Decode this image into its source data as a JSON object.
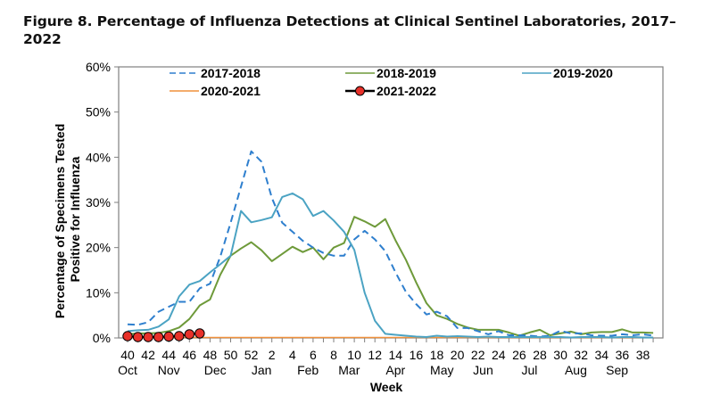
{
  "figure": {
    "title": "Figure 8. Percentage of Influenza Detections at Clinical Sentinel Laboratories, 2017–2022"
  },
  "chart_data": {
    "type": "line",
    "title": "Figure 8. Percentage of Influenza Detections at Clinical Sentinel Laboratories, 2017–2022",
    "xlabel": "Week",
    "ylabel": "Percentage of Specimens Tested Positive for Influenza",
    "ylim": [
      0,
      60
    ],
    "yticks": [
      "0%",
      "10%",
      "20%",
      "30%",
      "40%",
      "50%",
      "60%"
    ],
    "ytick_values": [
      0,
      10,
      20,
      30,
      40,
      50,
      60
    ],
    "grid": false,
    "legend_position": "top",
    "x_weeks": [
      40,
      41,
      42,
      43,
      44,
      45,
      46,
      47,
      48,
      49,
      50,
      51,
      52,
      1,
      2,
      3,
      4,
      5,
      6,
      7,
      8,
      9,
      10,
      11,
      12,
      13,
      14,
      15,
      16,
      17,
      18,
      19,
      20,
      21,
      22,
      23,
      24,
      25,
      26,
      27,
      28,
      29,
      30,
      31,
      32,
      33,
      34,
      35,
      36,
      37,
      38,
      39
    ],
    "xtick_labels": [
      "40",
      "42",
      "44",
      "46",
      "48",
      "50",
      "52",
      "2",
      "4",
      "6",
      "8",
      "10",
      "12",
      "14",
      "16",
      "18",
      "20",
      "22",
      "24",
      "26",
      "28",
      "30",
      "32",
      "34",
      "36",
      "38"
    ],
    "month_labels": [
      {
        "label": "Oct",
        "week_index": 0
      },
      {
        "label": "Nov",
        "week_index": 4
      },
      {
        "label": "Dec",
        "week_index": 8.5
      },
      {
        "label": "Jan",
        "week_index": 13
      },
      {
        "label": "Feb",
        "week_index": 17.5
      },
      {
        "label": "Mar",
        "week_index": 21.5
      },
      {
        "label": "Apr",
        "week_index": 26
      },
      {
        "label": "May",
        "week_index": 30.5
      },
      {
        "label": "Jun",
        "week_index": 34.5
      },
      {
        "label": "Jul",
        "week_index": 39
      },
      {
        "label": "Aug",
        "week_index": 43.5
      },
      {
        "label": "Sep",
        "week_index": 47.5
      }
    ],
    "series": [
      {
        "name": "2017-2018",
        "color": "#2e7fce",
        "style": "dashed",
        "values": [
          3.0,
          2.9,
          3.5,
          5.8,
          6.9,
          8.0,
          8.0,
          11.0,
          12.0,
          18.0,
          25.5,
          33.5,
          41.3,
          39.0,
          31.0,
          25.5,
          23.5,
          21.5,
          20.0,
          18.8,
          18.2,
          18.2,
          21.8,
          23.7,
          21.8,
          19.2,
          14.5,
          10.2,
          7.5,
          5.2,
          5.8,
          4.8,
          2.2,
          2.2,
          1.5,
          0.8,
          1.5,
          0.6,
          0.6,
          0.5,
          0.3,
          0.5,
          1.6,
          1.0,
          1.0,
          0.6,
          0.5,
          0.5,
          0.8,
          0.6,
          0.8,
          0.5
        ]
      },
      {
        "name": "2018-2019",
        "color": "#6e9a3a",
        "style": "solid",
        "values": [
          0.8,
          1.0,
          1.0,
          1.1,
          1.5,
          2.3,
          4.2,
          7.2,
          8.5,
          14.0,
          18.2,
          19.8,
          21.2,
          19.4,
          17.0,
          18.6,
          20.2,
          19.0,
          20.0,
          17.4,
          20.0,
          21.0,
          26.8,
          25.8,
          24.6,
          26.3,
          21.6,
          17.3,
          12.3,
          7.7,
          5.0,
          4.2,
          3.1,
          2.3,
          1.8,
          1.8,
          1.8,
          1.2,
          0.5,
          1.2,
          1.8,
          0.6,
          1.0,
          1.4,
          0.8,
          1.2,
          1.3,
          1.3,
          1.9,
          1.2,
          1.2,
          1.1
        ]
      },
      {
        "name": "2019-2020",
        "color": "#4ba3c3",
        "style": "solid",
        "values": [
          1.5,
          1.7,
          1.8,
          2.5,
          4.1,
          9.2,
          11.8,
          12.6,
          14.5,
          16.3,
          18.2,
          28.1,
          25.6,
          26.1,
          26.7,
          31.2,
          32.0,
          30.7,
          27.0,
          28.1,
          26.0,
          23.5,
          19.5,
          10.0,
          3.8,
          0.9,
          0.7,
          0.5,
          0.3,
          0.2,
          0.5,
          0.3,
          0.4,
          0.3,
          0.2,
          0.3,
          0.2,
          0.2,
          0.2,
          0.2,
          0.2,
          0.2,
          0.2,
          0.1,
          0.2,
          0.2,
          0.2,
          0.1,
          0.2,
          0.2,
          0.1,
          0.1
        ]
      },
      {
        "name": "2020-2021",
        "color": "#f0913c",
        "style": "solid",
        "values": [
          0.1,
          0.1,
          0.1,
          0.1,
          0.1,
          0.1,
          0.1,
          0.1,
          0.1,
          0.1,
          0.1,
          0.1,
          0.1,
          0.1,
          0.1,
          0.1,
          0.1,
          0.1,
          0.1,
          0.1,
          0.1,
          0.1,
          0.1,
          0.1,
          0.1,
          0.1,
          0.1,
          0.1,
          0.1,
          0.1,
          0.1,
          0.1,
          0.1,
          0.1,
          0.1,
          0.1,
          0.1,
          0.1,
          0.1,
          0.1,
          0.1,
          0.1,
          0.1,
          0.1,
          0.1,
          0.1,
          0.1,
          0.1,
          0.1,
          0.1,
          0.1,
          0.1
        ]
      },
      {
        "name": "2021-2022",
        "color": "#000000",
        "marker_color": "#e8312a",
        "style": "solid-marker",
        "values": [
          0.4,
          0.2,
          0.2,
          0.2,
          0.3,
          0.4,
          0.8,
          1.0
        ]
      }
    ]
  }
}
